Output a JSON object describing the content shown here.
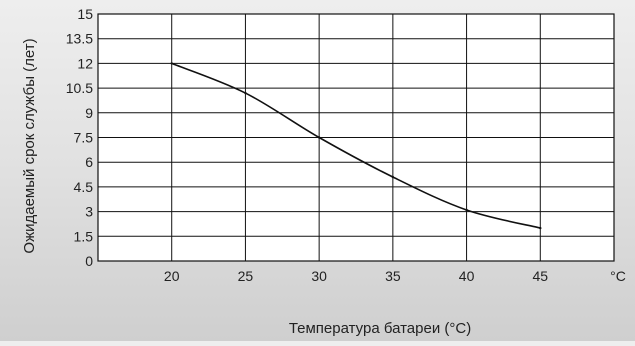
{
  "chart_data": {
    "type": "line",
    "title": "",
    "xlabel": "Температура батареи (°C)",
    "ylabel": "Ожидаемый срок службы (лет)",
    "x_unit_label": "°C",
    "x_ticks": [
      20,
      25,
      30,
      35,
      40,
      45
    ],
    "y_ticks": [
      0,
      1.5,
      3,
      4.5,
      6,
      7.5,
      9,
      10.5,
      12,
      13.5,
      15
    ],
    "y_tick_labels": [
      "0",
      "1.5",
      "3",
      "4.5",
      "6",
      "7.5",
      "9",
      "10.5",
      "12",
      "13.5",
      "15"
    ],
    "xlim": [
      15,
      50
    ],
    "ylim": [
      0,
      15
    ],
    "grid": true,
    "legend": "none",
    "series": [
      {
        "x": [
          20,
          25,
          30,
          35,
          40,
          45
        ],
        "values": [
          12,
          10.2,
          7.5,
          5.1,
          3.1,
          2.0
        ],
        "color": "#111111"
      }
    ]
  }
}
